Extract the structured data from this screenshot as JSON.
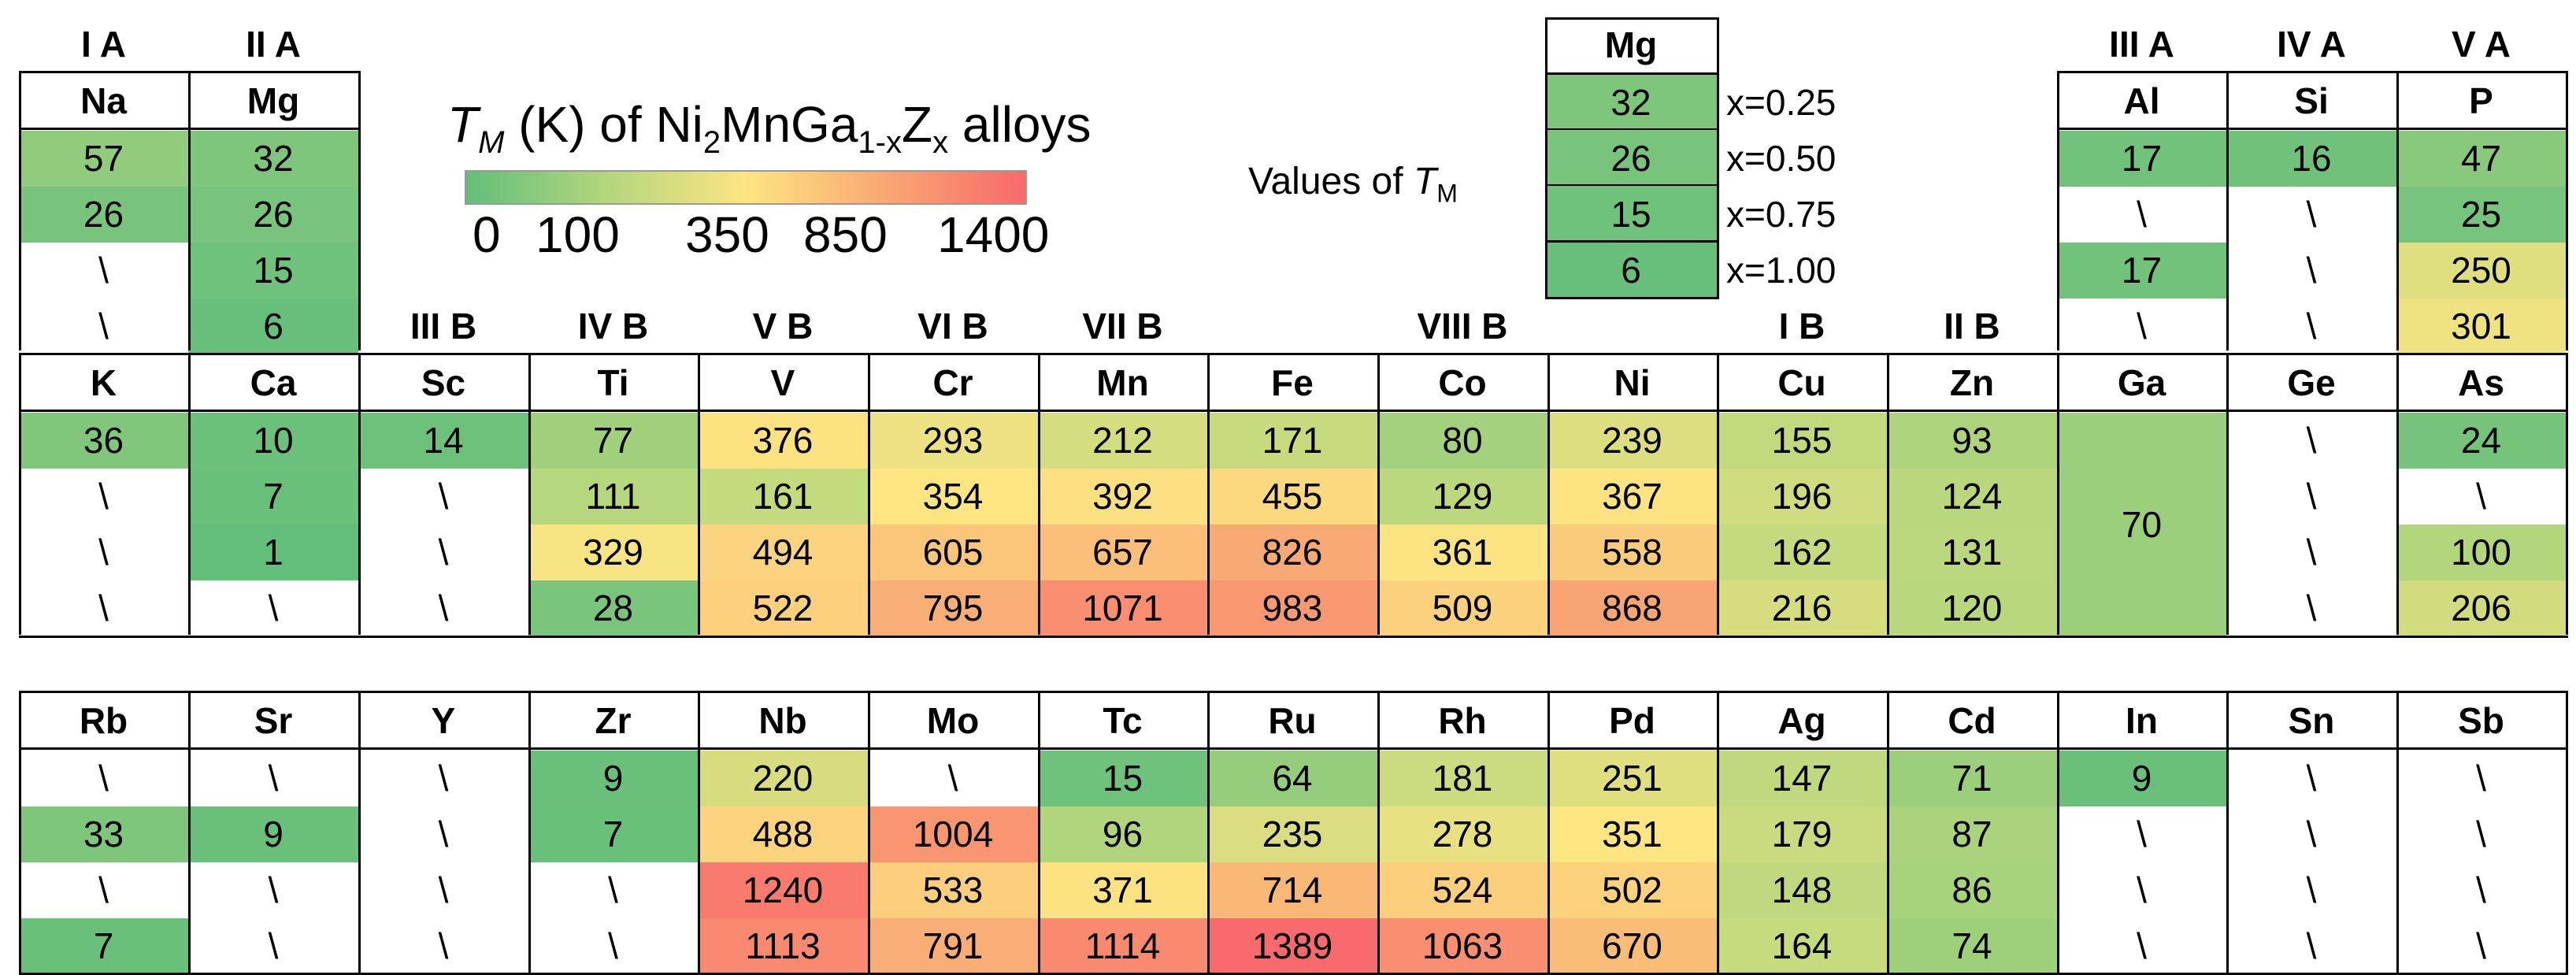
{
  "legend": {
    "title_T": "T",
    "title_M": "M",
    "title_rest_1": " (K) of Ni",
    "title_sub_2": "2",
    "title_rest_2": "MnGa",
    "title_sub_1x": "1-x",
    "title_rest_3": "Z",
    "title_sub_x": "x",
    "title_rest_4": " alloys",
    "scale_labels": [
      "0",
      "100",
      "350",
      "850",
      "1400"
    ],
    "scale_stops": [
      0,
      100,
      350,
      850,
      1400
    ],
    "colors": [
      "#63be7b",
      "#b3d67d",
      "#fde582",
      "#f9a773",
      "#f8696b"
    ]
  },
  "key": {
    "values_label": "Values of ",
    "values_T": "T",
    "values_M": "M",
    "element": "Mg",
    "values": [
      "32",
      "26",
      "15",
      "6"
    ],
    "x_labels": [
      "x=0.25",
      "x=0.50",
      "x=0.75",
      "x=1.00"
    ]
  },
  "chart_data": {
    "type": "table",
    "title": "TM (K) of Ni2MnGa1-xZx alloys",
    "row_labels": [
      "x=0.25",
      "x=0.50",
      "x=0.75",
      "x=1.00"
    ],
    "missing_marker": "\\",
    "group_headers": [
      "I A",
      "II A",
      "III B",
      "IV B",
      "V B",
      "VI B",
      "VII B",
      "VIII B",
      "I B",
      "II B",
      "III A",
      "IV A",
      "V A"
    ],
    "periods": [
      {
        "elements": [
          {
            "symbol": "Na",
            "values": [
              "57",
              "26",
              "\\",
              "\\"
            ]
          },
          {
            "symbol": "Mg",
            "values": [
              "32",
              "26",
              "15",
              "6"
            ]
          },
          {
            "symbol": "Al",
            "values": [
              "17",
              "\\",
              "17",
              "\\"
            ]
          },
          {
            "symbol": "Si",
            "values": [
              "16",
              "\\",
              "\\",
              "\\"
            ]
          },
          {
            "symbol": "P",
            "values": [
              "47",
              "25",
              "250",
              "301"
            ]
          }
        ]
      },
      {
        "elements": [
          {
            "symbol": "K",
            "values": [
              "36",
              "\\",
              "\\",
              "\\"
            ]
          },
          {
            "symbol": "Ca",
            "values": [
              "10",
              "7",
              "1",
              "\\"
            ]
          },
          {
            "symbol": "Sc",
            "values": [
              "14",
              "\\",
              "\\",
              "\\"
            ]
          },
          {
            "symbol": "Ti",
            "values": [
              "77",
              "111",
              "329",
              "28"
            ]
          },
          {
            "symbol": "V",
            "values": [
              "376",
              "161",
              "494",
              "522"
            ]
          },
          {
            "symbol": "Cr",
            "values": [
              "293",
              "354",
              "605",
              "795"
            ]
          },
          {
            "symbol": "Mn",
            "values": [
              "212",
              "392",
              "657",
              "1071"
            ]
          },
          {
            "symbol": "Fe",
            "values": [
              "171",
              "455",
              "826",
              "983"
            ]
          },
          {
            "symbol": "Co",
            "values": [
              "80",
              "129",
              "361",
              "509"
            ]
          },
          {
            "symbol": "Ni",
            "values": [
              "239",
              "367",
              "558",
              "868"
            ]
          },
          {
            "symbol": "Cu",
            "values": [
              "155",
              "196",
              "162",
              "216"
            ]
          },
          {
            "symbol": "Zn",
            "values": [
              "93",
              "124",
              "131",
              "120"
            ]
          },
          {
            "symbol": "Ga",
            "values": [
              "70"
            ],
            "merged": true
          },
          {
            "symbol": "Ge",
            "values": [
              "\\",
              "\\",
              "\\",
              "\\"
            ]
          },
          {
            "symbol": "As",
            "values": [
              "24",
              "\\",
              "100",
              "206"
            ]
          }
        ]
      },
      {
        "elements": [
          {
            "symbol": "Rb",
            "values": [
              "\\",
              "33",
              "\\",
              "7"
            ]
          },
          {
            "symbol": "Sr",
            "values": [
              "\\",
              "9",
              "\\",
              "\\"
            ]
          },
          {
            "symbol": "Y",
            "values": [
              "\\",
              "\\",
              "\\",
              "\\"
            ]
          },
          {
            "symbol": "Zr",
            "values": [
              "9",
              "7",
              "\\",
              "\\"
            ]
          },
          {
            "symbol": "Nb",
            "values": [
              "220",
              "488",
              "1240",
              "1113"
            ]
          },
          {
            "symbol": "Mo",
            "values": [
              "\\",
              "1004",
              "533",
              "791"
            ]
          },
          {
            "symbol": "Tc",
            "values": [
              "15",
              "96",
              "371",
              "1114"
            ]
          },
          {
            "symbol": "Ru",
            "values": [
              "64",
              "235",
              "714",
              "1389"
            ]
          },
          {
            "symbol": "Rh",
            "values": [
              "181",
              "278",
              "524",
              "1063"
            ]
          },
          {
            "symbol": "Pd",
            "values": [
              "251",
              "351",
              "502",
              "670"
            ]
          },
          {
            "symbol": "Ag",
            "values": [
              "147",
              "179",
              "148",
              "164"
            ]
          },
          {
            "symbol": "Cd",
            "values": [
              "71",
              "87",
              "86",
              "74"
            ]
          },
          {
            "symbol": "In",
            "values": [
              "9",
              "\\",
              "\\",
              "\\"
            ]
          },
          {
            "symbol": "Sn",
            "values": [
              "\\",
              "\\",
              "\\",
              "\\"
            ]
          },
          {
            "symbol": "Sb",
            "values": [
              "\\",
              "\\",
              "\\",
              "\\"
            ]
          }
        ]
      }
    ]
  }
}
